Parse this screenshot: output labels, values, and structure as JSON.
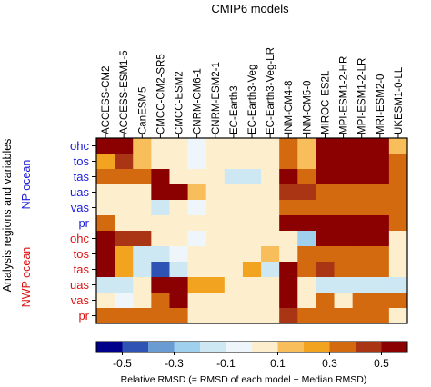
{
  "chart_data": {
    "type": "heatmap",
    "title": "CMIP6 models",
    "ylabel": "Analysis regions and variables",
    "models": [
      "ACCESS-CM2",
      "ACCESS-ESM1-5",
      "CanESM5",
      "CMCC-CM2-SR5",
      "CMCC-ESM2",
      "CNRM-CM6-1",
      "CNRM-ESM2-1",
      "EC-Earth3",
      "EC-Earth3-Veg",
      "EC-Earth3-Veg-LR",
      "INM-CM4-8",
      "INM-CM5-0",
      "MIROC-ES2L",
      "MPI-ESM1-2-HR",
      "MPI-ESM1-2-LR",
      "MRI-ESM2-0",
      "UKESM1-0-LL"
    ],
    "regions": [
      {
        "name": "NP ocean",
        "color": "#1a1adc",
        "variables": [
          "ohc",
          "tos",
          "tas",
          "uas",
          "vas",
          "pr"
        ]
      },
      {
        "name": "NWP ocean",
        "color": "#e01010",
        "variables": [
          "ohc",
          "tos",
          "tas",
          "uas",
          "vas",
          "pr"
        ]
      }
    ],
    "values": [
      [
        0.6,
        0.6,
        0.1,
        0.0,
        0.0,
        -0.1,
        0.0,
        0.0,
        0.0,
        0.0,
        0.3,
        0.1,
        0.6,
        0.6,
        0.6,
        0.6,
        0.1
      ],
      [
        0.2,
        0.4,
        0.1,
        0.0,
        0.0,
        -0.1,
        0.0,
        0.0,
        0.0,
        0.0,
        0.3,
        0.1,
        0.6,
        0.6,
        0.6,
        0.6,
        0.3
      ],
      [
        0.3,
        0.3,
        0.3,
        0.5,
        0.0,
        0.0,
        0.0,
        -0.2,
        -0.2,
        0.0,
        0.5,
        0.3,
        0.6,
        0.6,
        0.6,
        0.6,
        0.3
      ],
      [
        0.0,
        0.0,
        0.0,
        0.6,
        0.6,
        0.1,
        0.0,
        0.0,
        0.0,
        0.0,
        0.4,
        0.4,
        0.3,
        0.3,
        0.3,
        0.3,
        0.3
      ],
      [
        0.0,
        0.0,
        0.0,
        -0.2,
        0.0,
        -0.1,
        0.0,
        0.0,
        0.0,
        0.0,
        0.3,
        0.3,
        0.3,
        0.3,
        0.3,
        0.3,
        0.3
      ],
      [
        0.3,
        0.0,
        0.0,
        0.0,
        0.0,
        0.0,
        0.0,
        0.0,
        0.0,
        0.0,
        0.6,
        0.6,
        0.6,
        0.6,
        0.6,
        0.6,
        0.3
      ],
      [
        0.5,
        0.4,
        0.4,
        0.0,
        0.0,
        -0.1,
        0.0,
        0.0,
        0.0,
        0.0,
        0.0,
        -0.3,
        0.6,
        0.6,
        0.6,
        0.6,
        0.0
      ],
      [
        0.6,
        0.2,
        -0.2,
        -0.2,
        -0.1,
        0.0,
        0.0,
        0.0,
        0.0,
        0.1,
        0.0,
        0.3,
        0.3,
        0.3,
        0.3,
        0.3,
        0.0
      ],
      [
        0.6,
        0.2,
        -0.2,
        -0.5,
        -0.2,
        0.0,
        0.0,
        0.0,
        0.2,
        -0.2,
        0.6,
        0.3,
        0.4,
        0.3,
        0.3,
        0.3,
        0.0
      ],
      [
        -0.2,
        -0.2,
        0.0,
        0.6,
        0.6,
        0.2,
        0.2,
        0.0,
        0.0,
        0.0,
        0.6,
        0.0,
        -0.2,
        -0.2,
        -0.2,
        -0.2,
        -0.2
      ],
      [
        0.0,
        -0.1,
        0.0,
        0.3,
        0.5,
        0.0,
        0.0,
        0.0,
        0.0,
        0.0,
        0.5,
        0.0,
        0.3,
        0.0,
        0.3,
        0.3,
        0.3
      ],
      [
        0.3,
        0.3,
        0.3,
        0.3,
        0.3,
        0.0,
        0.0,
        0.0,
        0.0,
        0.0,
        0.4,
        0.3,
        0.3,
        0.3,
        0.3,
        0.3,
        0.0
      ]
    ],
    "colorbar": {
      "colors": [
        "#00008b",
        "#2f53b5",
        "#6a9bd2",
        "#9fd0ed",
        "#cde7f3",
        "#eef6fb",
        "#fdeece",
        "#f9be5c",
        "#f2a421",
        "#d46a10",
        "#aa3515",
        "#8b0000"
      ],
      "boundaries": [
        -0.6,
        -0.5,
        -0.4,
        -0.3,
        -0.2,
        -0.1,
        0.0,
        0.1,
        0.2,
        0.3,
        0.4,
        0.5,
        0.6
      ],
      "ticks": [
        -0.5,
        -0.3,
        -0.1,
        0.1,
        0.3,
        0.5
      ],
      "tick_labels": [
        "-0.5",
        "-0.3",
        "-0.1",
        "0.1",
        "0.3",
        "0.5"
      ],
      "label": "Relative RMSD (= RMSD of each model − Median RMSD)"
    }
  }
}
